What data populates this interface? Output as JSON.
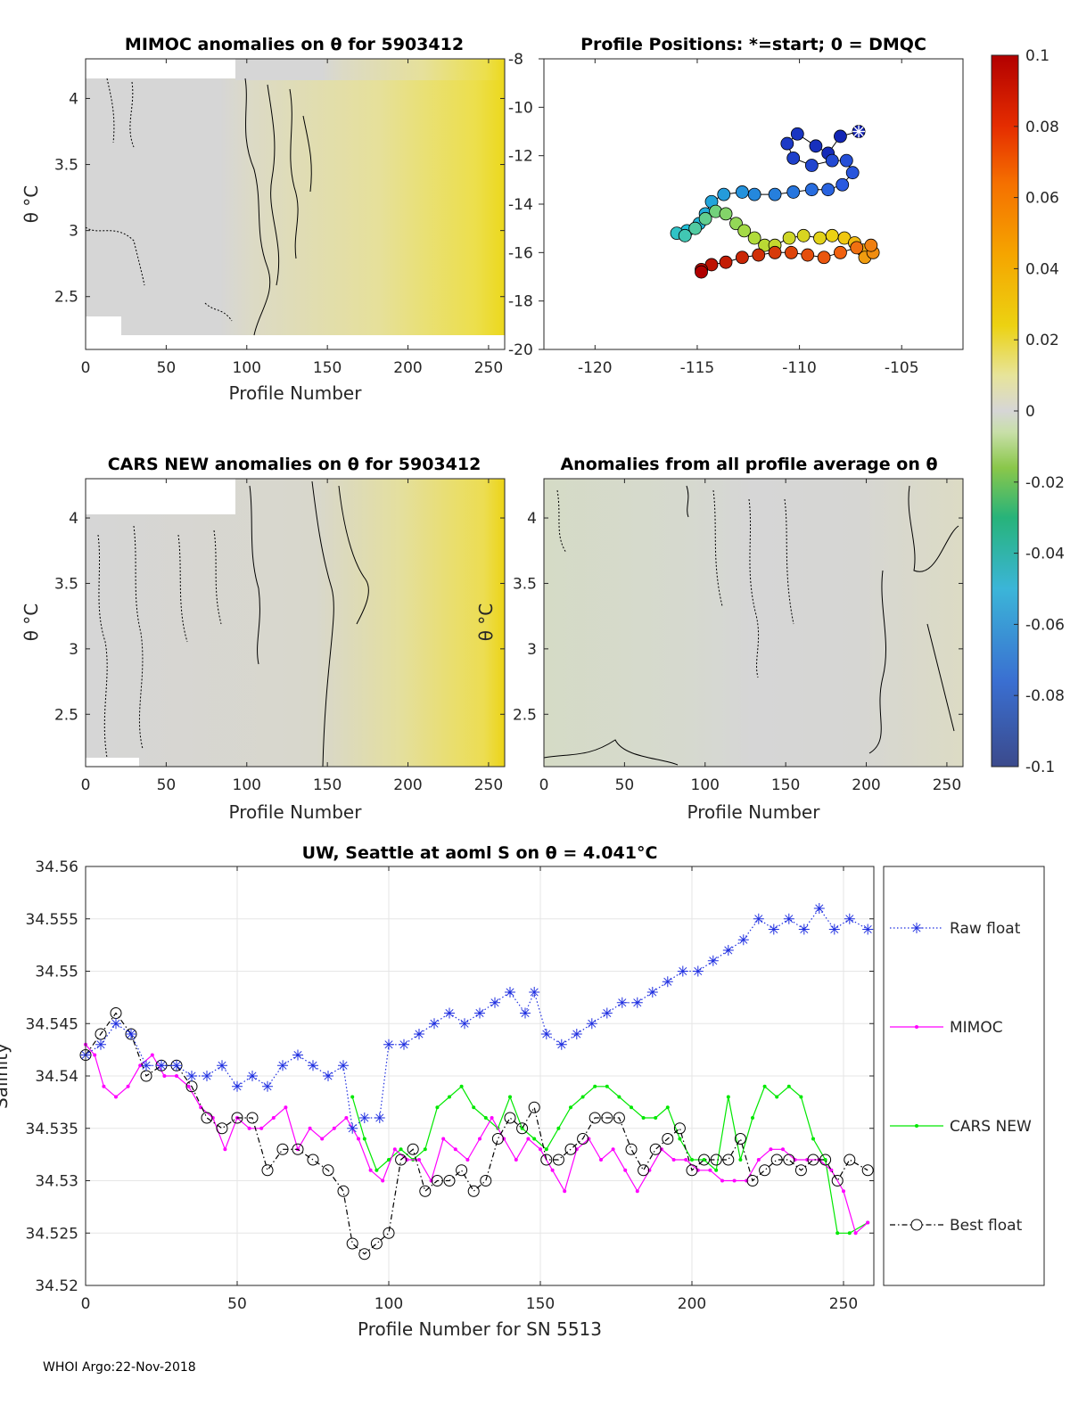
{
  "footer": "WHOI Argo:22-Nov-2018",
  "colors": {
    "raw": "#1f2fe0",
    "mimoc": "#ff00ff",
    "cars": "#00e800",
    "best": "#000000",
    "grid": "#e6e6e6",
    "field_gray": "#d6d6d6",
    "field_yellow": "#ecdf38"
  },
  "chart_data": [
    {
      "id": "mimoc_panel",
      "type": "heatmap",
      "title": "MIMOC anomalies on θ  for 5903412",
      "xlabel": "Profile Number",
      "ylabel": "θ °C",
      "xlim": [
        0,
        260
      ],
      "ylim": [
        2.1,
        4.3
      ],
      "xticks": [
        0,
        50,
        100,
        150,
        200,
        250
      ],
      "yticks": [
        2.5,
        3,
        3.5,
        4
      ],
      "ytick_labels": [
        "2.5",
        "3",
        "3.5",
        "4"
      ],
      "anomaly_trend": {
        "profiles": [
          0,
          90,
          150,
          200,
          258
        ],
        "values": [
          0.0,
          0.003,
          0.012,
          0.02,
          0.03
        ]
      }
    },
    {
      "id": "positions_panel",
      "type": "scatter",
      "title": "Profile Positions: *=start; 0 = DMQC",
      "xlim": [
        -122.5,
        -102
      ],
      "ylim": [
        -20,
        -8
      ],
      "xticks": [
        -120,
        -115,
        -110,
        -105
      ],
      "xtick_labels": [
        "-120",
        "-115",
        "-110",
        "-105"
      ],
      "yticks": [
        -8,
        -10,
        -12,
        -14,
        -16,
        -18,
        -20
      ],
      "ytick_labels": [
        "-8",
        "-10",
        "-12",
        "-14",
        "-16",
        "-18",
        "-20"
      ],
      "start_marker": "*",
      "track": [
        [
          -107.1,
          -11.0
        ],
        [
          -108.0,
          -11.2
        ],
        [
          -108.6,
          -11.9
        ],
        [
          -109.2,
          -11.6
        ],
        [
          -110.1,
          -11.1
        ],
        [
          -110.6,
          -11.5
        ],
        [
          -110.3,
          -12.1
        ],
        [
          -109.4,
          -12.4
        ],
        [
          -108.4,
          -12.2
        ],
        [
          -107.7,
          -12.2
        ],
        [
          -107.4,
          -12.7
        ],
        [
          -107.9,
          -13.2
        ],
        [
          -108.6,
          -13.4
        ],
        [
          -109.4,
          -13.4
        ],
        [
          -110.3,
          -13.5
        ],
        [
          -111.2,
          -13.6
        ],
        [
          -112.2,
          -13.6
        ],
        [
          -112.8,
          -13.5
        ],
        [
          -113.7,
          -13.6
        ],
        [
          -114.3,
          -13.9
        ],
        [
          -114.6,
          -14.4
        ],
        [
          -114.9,
          -14.8
        ],
        [
          -115.5,
          -15.1
        ],
        [
          -116.0,
          -15.2
        ],
        [
          -115.6,
          -15.3
        ],
        [
          -115.1,
          -15.0
        ],
        [
          -114.6,
          -14.6
        ],
        [
          -114.1,
          -14.3
        ],
        [
          -113.6,
          -14.4
        ],
        [
          -113.1,
          -14.8
        ],
        [
          -112.7,
          -15.1
        ],
        [
          -112.2,
          -15.4
        ],
        [
          -111.7,
          -15.7
        ],
        [
          -111.2,
          -15.7
        ],
        [
          -110.5,
          -15.4
        ],
        [
          -109.8,
          -15.3
        ],
        [
          -109.0,
          -15.4
        ],
        [
          -108.4,
          -15.3
        ],
        [
          -107.8,
          -15.4
        ],
        [
          -107.3,
          -15.6
        ],
        [
          -106.9,
          -15.9
        ],
        [
          -106.8,
          -16.2
        ],
        [
          -106.4,
          -16.0
        ],
        [
          -106.5,
          -15.7
        ],
        [
          -107.2,
          -15.8
        ],
        [
          -108.0,
          -16.0
        ],
        [
          -108.8,
          -16.2
        ],
        [
          -109.6,
          -16.1
        ],
        [
          -110.4,
          -16.0
        ],
        [
          -111.2,
          -16.0
        ],
        [
          -112.0,
          -16.1
        ],
        [
          -112.8,
          -16.2
        ],
        [
          -113.6,
          -16.4
        ],
        [
          -114.3,
          -16.5
        ],
        [
          -114.8,
          -16.7
        ],
        [
          -114.8,
          -16.8
        ]
      ],
      "color_by": "fraction of float record, -0.1 to 0.1 colormap"
    },
    {
      "id": "colorbar",
      "type": "colorbar",
      "range": [
        -0.1,
        0.1
      ],
      "ticks": [
        0.1,
        0.08,
        0.06,
        0.04,
        0.02,
        0,
        -0.02,
        -0.04,
        -0.06,
        -0.08,
        -0.1
      ],
      "tick_labels": [
        "0.1",
        "0.08",
        "0.06",
        "0.04",
        "0.02",
        "0",
        "-0.02",
        "-0.04",
        "-0.06",
        "-0.08",
        "-0.1"
      ]
    },
    {
      "id": "cars_panel",
      "type": "heatmap",
      "title": "CARS NEW anomalies on θ for 5903412",
      "xlabel": "Profile Number",
      "ylabel": "θ °C",
      "xlim": [
        0,
        260
      ],
      "ylim": [
        2.1,
        4.3
      ],
      "xticks": [
        0,
        50,
        100,
        150,
        200,
        250
      ],
      "yticks": [
        2.5,
        3,
        3.5,
        4
      ],
      "ytick_labels": [
        "2.5",
        "3",
        "3.5",
        "4"
      ],
      "anomaly_trend": {
        "profiles": [
          0,
          150,
          200,
          258
        ],
        "values": [
          0.0,
          0.004,
          0.015,
          0.03
        ]
      }
    },
    {
      "id": "allprofile_panel",
      "type": "heatmap",
      "title": "Anomalies from all profile average on θ",
      "xlabel": "Profile Number",
      "ylabel": "θ °C",
      "xlim": [
        0,
        260
      ],
      "ylim": [
        2.1,
        4.3
      ],
      "xticks": [
        0,
        50,
        100,
        150,
        200,
        250
      ],
      "yticks": [
        2.5,
        3,
        3.5,
        4
      ],
      "ytick_labels": [
        "2.5",
        "3",
        "3.5",
        "4"
      ],
      "anomaly_trend": {
        "profiles": [
          0,
          100,
          180,
          258
        ],
        "values": [
          -0.006,
          0.0,
          0.002,
          0.006
        ]
      }
    },
    {
      "id": "salinity_panel",
      "type": "line",
      "title": "UW, Seattle at aoml S on θ = 4.041°C",
      "xlabel": "Profile Number for SN 5513",
      "ylabel": "Salinity",
      "xlim": [
        0,
        260
      ],
      "ylim": [
        34.52,
        34.56
      ],
      "xticks": [
        0,
        50,
        100,
        150,
        200,
        250
      ],
      "yticks": [
        34.52,
        34.525,
        34.53,
        34.535,
        34.54,
        34.545,
        34.55,
        34.555,
        34.56
      ],
      "ytick_labels": [
        "34.52",
        "34.525",
        "34.53",
        "34.535",
        "34.54",
        "34.545",
        "34.55",
        "34.555",
        "34.56"
      ],
      "series": [
        {
          "name": "Raw float",
          "marker": "*",
          "x": [
            0,
            5,
            10,
            15,
            20,
            25,
            30,
            35,
            40,
            45,
            50,
            55,
            60,
            65,
            70,
            75,
            80,
            85,
            88,
            92,
            97,
            100,
            105,
            110,
            115,
            120,
            125,
            130,
            135,
            140,
            145,
            148,
            152,
            157,
            162,
            167,
            172,
            177,
            182,
            187,
            192,
            197,
            202,
            207,
            212,
            217,
            222,
            227,
            232,
            237,
            242,
            247,
            252,
            258
          ],
          "y": [
            34.542,
            34.543,
            34.545,
            34.544,
            34.541,
            34.541,
            34.541,
            34.54,
            34.54,
            34.541,
            34.539,
            34.54,
            34.539,
            34.541,
            34.542,
            34.541,
            34.54,
            34.541,
            34.535,
            34.536,
            34.536,
            34.543,
            34.543,
            34.544,
            34.545,
            34.546,
            34.545,
            34.546,
            34.547,
            34.548,
            34.546,
            34.548,
            34.544,
            34.543,
            34.544,
            34.545,
            34.546,
            34.547,
            34.547,
            34.548,
            34.549,
            34.55,
            34.55,
            34.551,
            34.552,
            34.553,
            34.555,
            34.554,
            34.555,
            34.554,
            34.556,
            34.554,
            34.555,
            34.554
          ]
        },
        {
          "name": "MIMOC",
          "marker": ".",
          "x": [
            0,
            3,
            6,
            10,
            14,
            18,
            22,
            26,
            30,
            34,
            38,
            42,
            46,
            50,
            54,
            58,
            62,
            66,
            70,
            74,
            78,
            82,
            86,
            90,
            94,
            98,
            102,
            106,
            110,
            114,
            118,
            122,
            126,
            130,
            134,
            138,
            142,
            146,
            150,
            154,
            158,
            162,
            166,
            170,
            174,
            178,
            182,
            186,
            190,
            194,
            198,
            202,
            206,
            210,
            214,
            218,
            222,
            226,
            230,
            234,
            238,
            242,
            246,
            250,
            254,
            258
          ],
          "y": [
            34.543,
            34.542,
            34.539,
            34.538,
            34.539,
            34.541,
            34.542,
            34.54,
            34.54,
            34.539,
            34.537,
            34.536,
            34.533,
            34.536,
            34.535,
            34.535,
            34.536,
            34.537,
            34.533,
            34.535,
            34.534,
            34.535,
            34.536,
            34.534,
            34.531,
            34.53,
            34.533,
            34.532,
            34.532,
            34.53,
            34.534,
            34.533,
            34.532,
            34.534,
            34.536,
            34.534,
            34.532,
            34.534,
            34.533,
            34.531,
            34.529,
            34.533,
            34.534,
            34.532,
            34.533,
            34.531,
            34.529,
            34.531,
            34.533,
            34.532,
            34.532,
            34.531,
            34.531,
            34.53,
            34.53,
            34.53,
            34.532,
            34.533,
            34.533,
            34.532,
            34.532,
            34.532,
            34.531,
            34.529,
            34.525,
            34.526
          ]
        },
        {
          "name": "CARS NEW",
          "marker": ".",
          "x": [
            88,
            92,
            96,
            100,
            104,
            108,
            112,
            116,
            120,
            124,
            128,
            132,
            136,
            140,
            144,
            148,
            152,
            156,
            160,
            164,
            168,
            172,
            176,
            180,
            184,
            188,
            192,
            196,
            200,
            204,
            208,
            212,
            216,
            220,
            224,
            228,
            232,
            236,
            240,
            244,
            248,
            252,
            258
          ],
          "y": [
            34.538,
            34.534,
            34.531,
            34.532,
            34.533,
            34.532,
            34.533,
            34.537,
            34.538,
            34.539,
            34.537,
            34.536,
            34.535,
            34.538,
            34.535,
            34.534,
            34.533,
            34.535,
            34.537,
            34.538,
            34.539,
            34.539,
            34.538,
            34.537,
            34.536,
            34.536,
            34.537,
            34.534,
            34.532,
            34.532,
            34.531,
            34.538,
            34.532,
            34.536,
            34.539,
            34.538,
            34.539,
            34.538,
            34.534,
            34.532,
            34.525,
            34.525,
            34.526
          ]
        },
        {
          "name": "Best float",
          "marker": "o",
          "x": [
            0,
            5,
            10,
            15,
            20,
            25,
            30,
            35,
            40,
            45,
            50,
            55,
            60,
            65,
            70,
            75,
            80,
            85,
            88,
            92,
            96,
            100,
            104,
            108,
            112,
            116,
            120,
            124,
            128,
            132,
            136,
            140,
            144,
            148,
            152,
            156,
            160,
            164,
            168,
            172,
            176,
            180,
            184,
            188,
            192,
            196,
            200,
            204,
            208,
            212,
            216,
            220,
            224,
            228,
            232,
            236,
            240,
            244,
            248,
            252,
            258
          ],
          "y": [
            34.542,
            34.544,
            34.546,
            34.544,
            34.54,
            34.541,
            34.541,
            34.539,
            34.536,
            34.535,
            34.536,
            34.536,
            34.531,
            34.533,
            34.533,
            34.532,
            34.531,
            34.529,
            34.524,
            34.523,
            34.524,
            34.525,
            34.532,
            34.533,
            34.529,
            34.53,
            34.53,
            34.531,
            34.529,
            34.53,
            34.534,
            34.536,
            34.535,
            34.537,
            34.532,
            34.532,
            34.533,
            34.534,
            34.536,
            34.536,
            34.536,
            34.533,
            34.531,
            34.533,
            34.534,
            34.535,
            34.531,
            34.532,
            34.532,
            34.532,
            34.534,
            34.53,
            34.531,
            34.532,
            34.532,
            34.531,
            34.532,
            34.532,
            34.53,
            34.532,
            34.531
          ]
        }
      ]
    }
  ]
}
